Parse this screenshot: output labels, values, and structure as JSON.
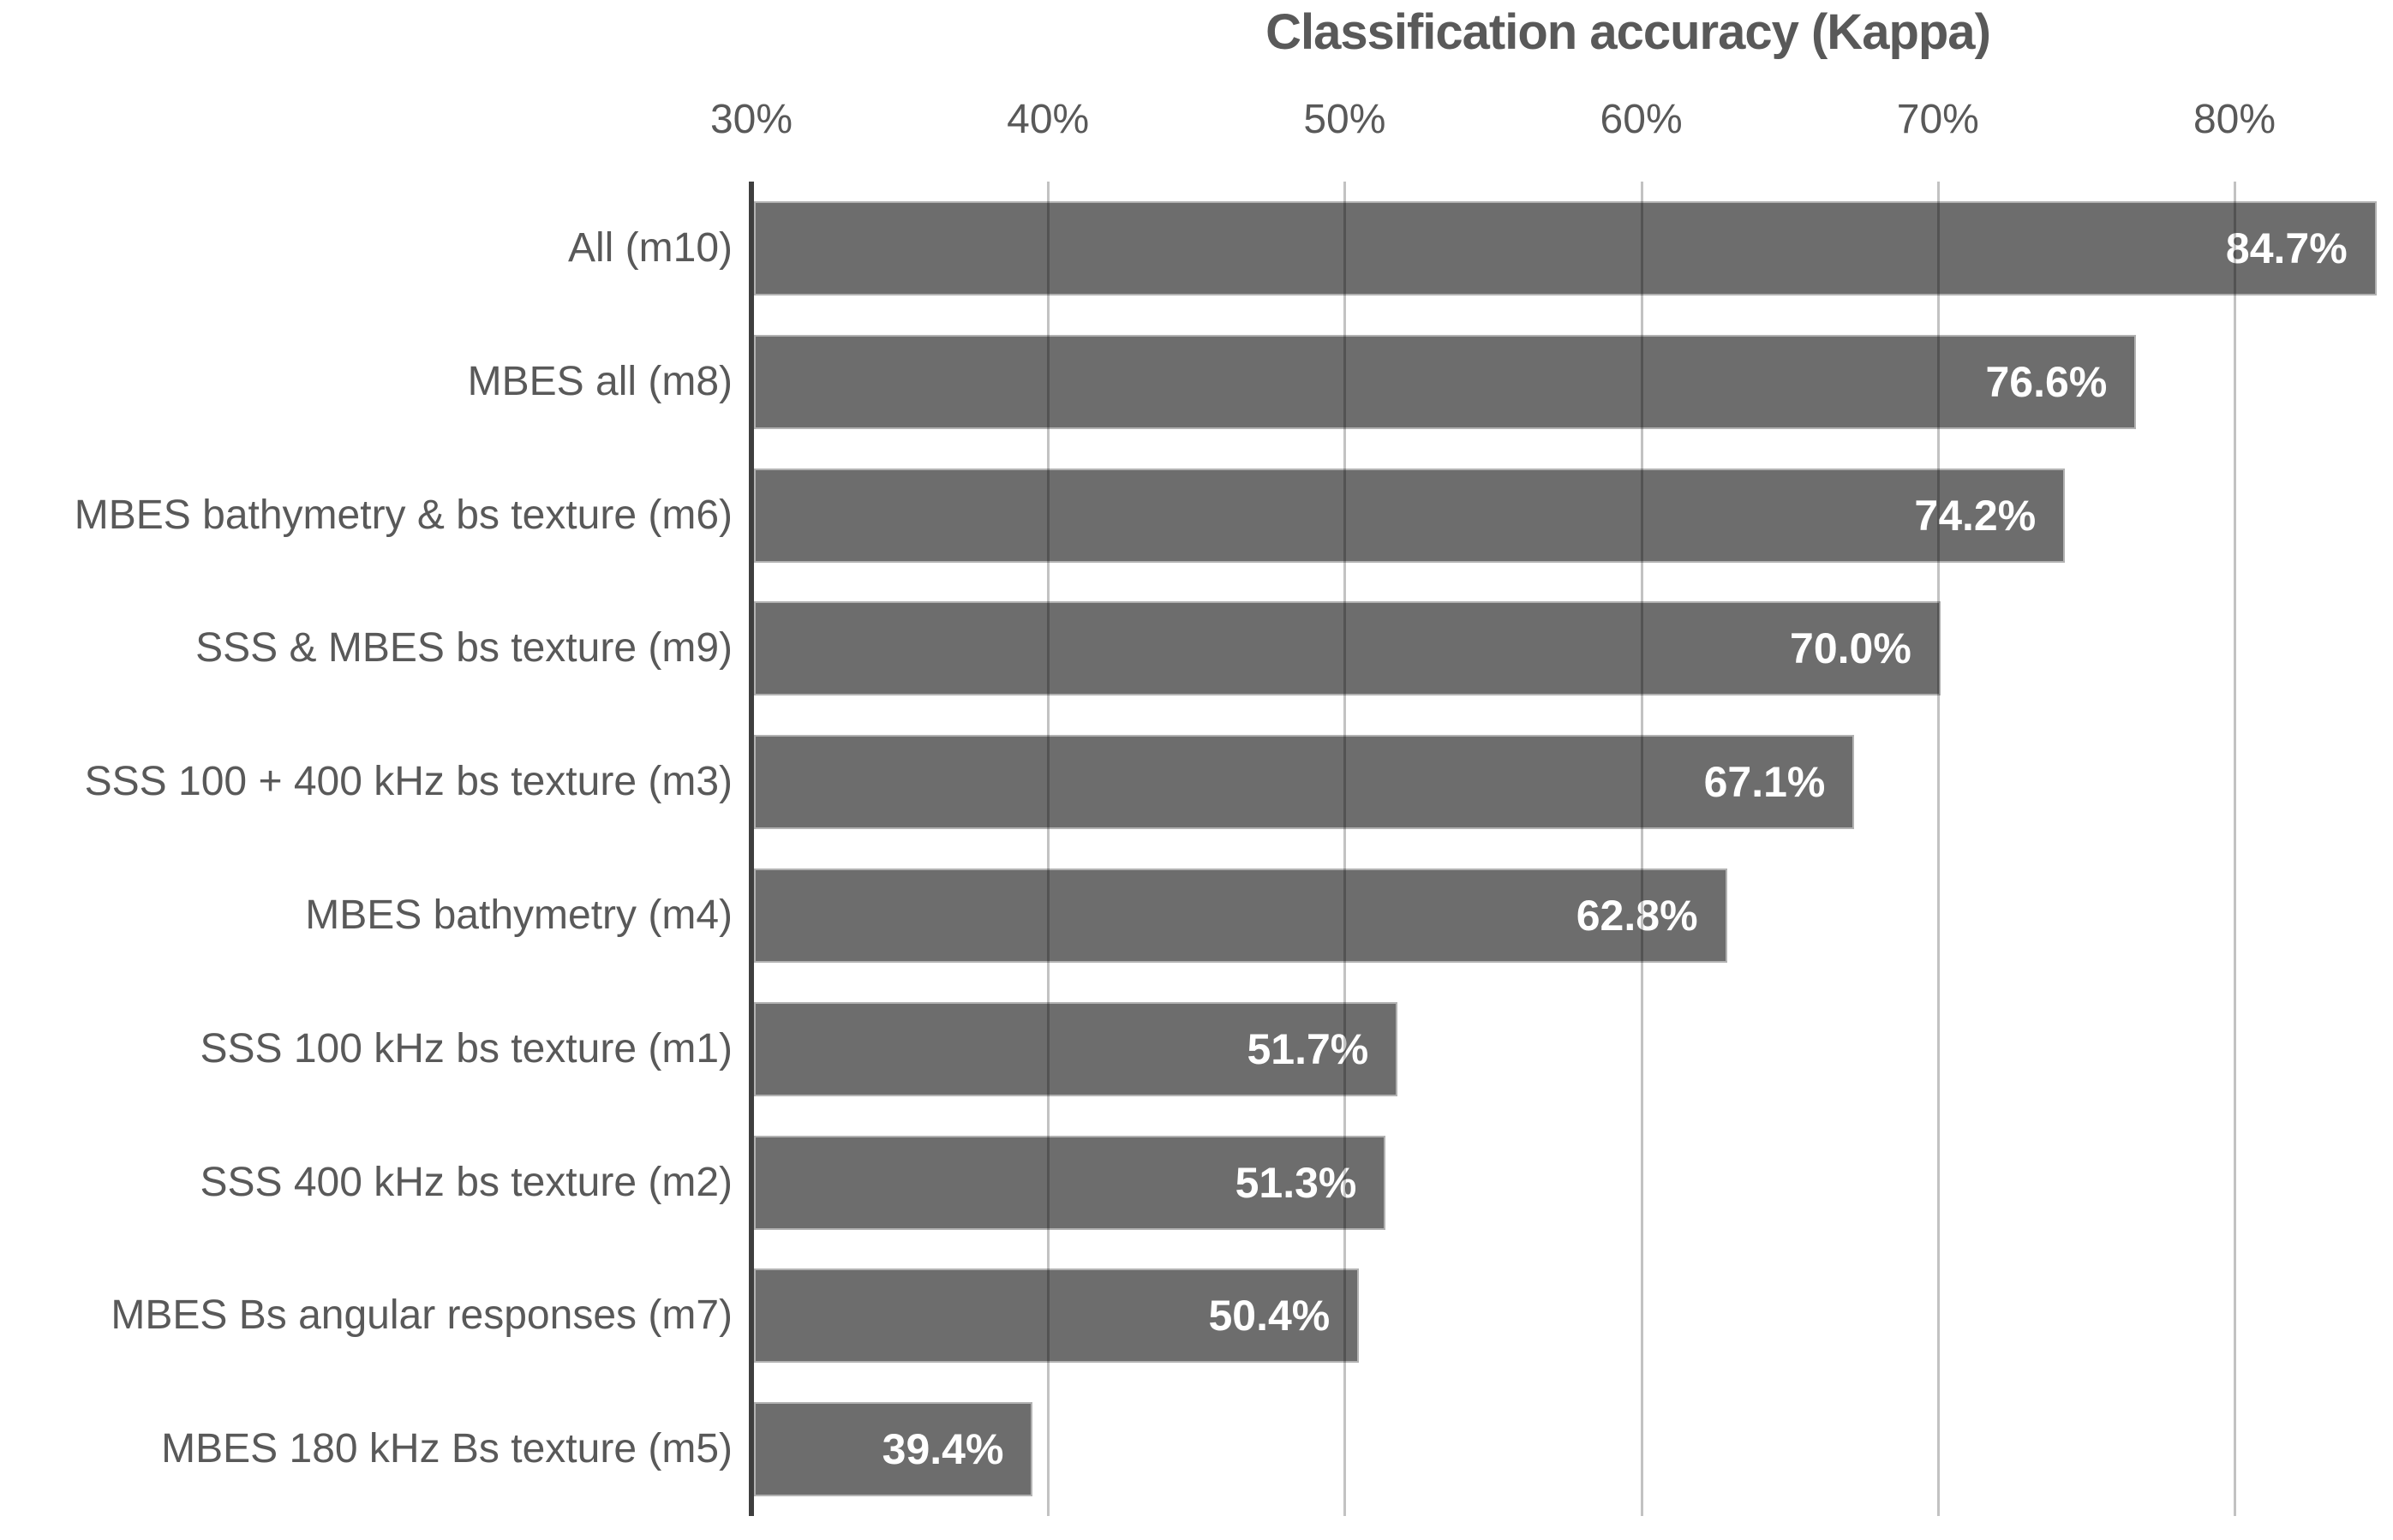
{
  "title": "Classification accuracy (Kappa)",
  "x_axis": {
    "tick_labels": [
      "30%",
      "40%",
      "50%",
      "60%",
      "70%",
      "80%"
    ],
    "tick_values": [
      30,
      40,
      50,
      60,
      70,
      80
    ],
    "min": 30,
    "max": 85
  },
  "colors": {
    "bar_fill": "#6d6d6d",
    "bar_border": "#b2b2b2",
    "axis_line": "#3f3f3f",
    "gridline": "#bfbfbf",
    "text": "#595959",
    "value_text": "#ffffff"
  },
  "chart_data": {
    "type": "bar",
    "orientation": "horizontal",
    "title": "Classification accuracy (Kappa)",
    "categories": [
      "All (m10)",
      "MBES all (m8)",
      "MBES bathymetry & bs texture (m6)",
      "SSS & MBES bs texture (m9)",
      "SSS 100 + 400 kHz bs texture (m3)",
      "MBES bathymetry (m4)",
      "SSS 100 kHz bs texture (m1)",
      "SSS 400 kHz bs texture (m2)",
      "MBES Bs angular responses (m7)",
      "MBES 180 kHz Bs texture (m5)"
    ],
    "values": [
      84.7,
      76.6,
      74.2,
      70.0,
      67.1,
      62.8,
      51.7,
      51.3,
      50.4,
      39.4
    ],
    "value_labels": [
      "84.7%",
      "76.6%",
      "74.2%",
      "70.0%",
      "67.1%",
      "62.8%",
      "51.7%",
      "51.3%",
      "50.4%",
      "39.4%"
    ],
    "xlabel": "",
    "ylabel": "",
    "xlim": [
      30,
      85
    ],
    "xticks": [
      30,
      40,
      50,
      60,
      70,
      80
    ],
    "grid": "vertical-gridlines-on",
    "legend": "none",
    "value_label_position": "inside-end"
  }
}
